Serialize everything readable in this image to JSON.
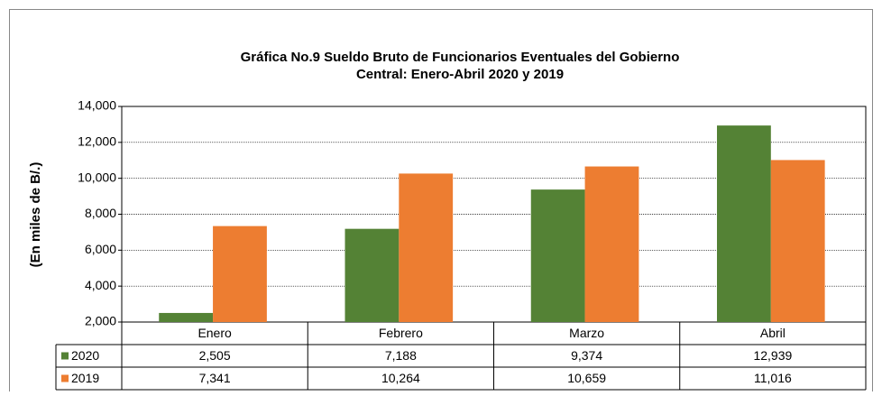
{
  "chart_data": {
    "type": "bar",
    "title": [
      "Gráfica No.9 Sueldo Bruto de Funcionarios Eventuales del  Gobierno",
      "Central: Enero-Abril 2020 y 2019"
    ],
    "y_label": "(En miles de B/.)",
    "categories": [
      "Enero",
      "Febrero",
      "Marzo",
      "Abril"
    ],
    "series": [
      {
        "name": "2020",
        "color": "#548235",
        "values": [
          2505,
          7188,
          9374,
          12939
        ],
        "value_labels": [
          "2,505",
          "7,188",
          "9,374",
          "12,939"
        ]
      },
      {
        "name": "2019",
        "color": "#ed7d31",
        "values": [
          7341,
          10264,
          10659,
          11016
        ],
        "value_labels": [
          "7,341",
          "10,264",
          "10,659",
          "11,016"
        ]
      }
    ],
    "ylim": [
      2000,
      14000
    ],
    "yticks": [
      {
        "value": 2000,
        "label": "2,000"
      },
      {
        "value": 4000,
        "label": "4,000"
      },
      {
        "value": 6000,
        "label": "6,000"
      },
      {
        "value": 8000,
        "label": "8,000"
      },
      {
        "value": 10000,
        "label": "10,000"
      },
      {
        "value": 12000,
        "label": "12,000"
      },
      {
        "value": 14000,
        "label": "14,000"
      }
    ],
    "grid": true
  }
}
